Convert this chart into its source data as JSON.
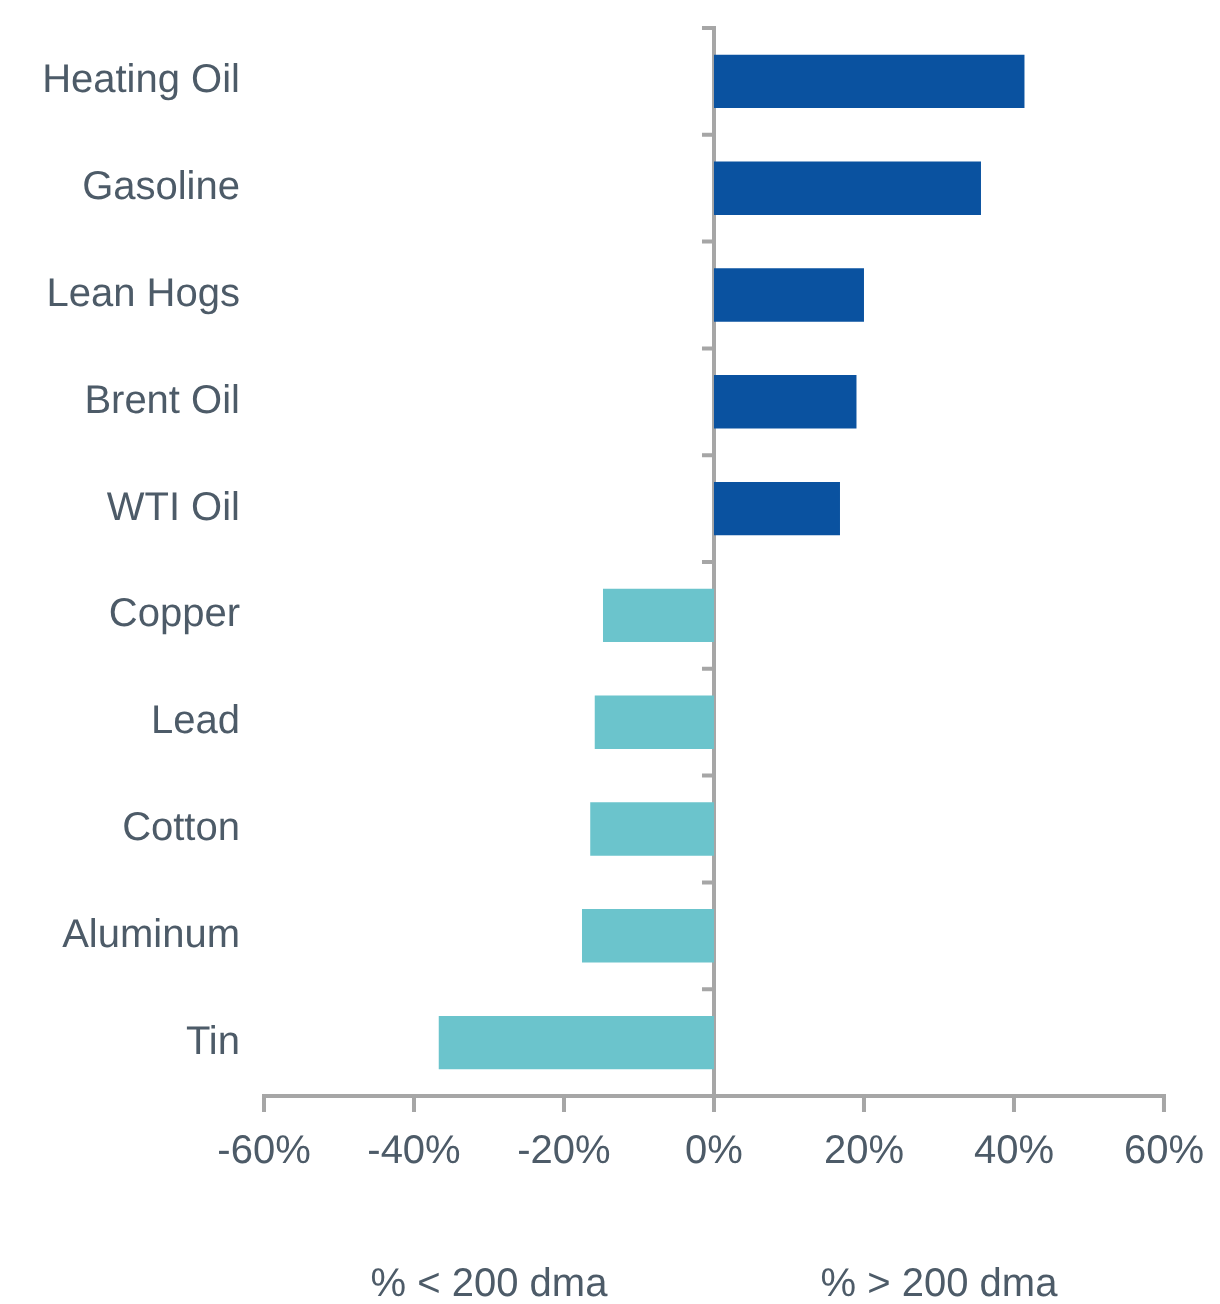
{
  "chart_data": {
    "type": "bar",
    "orientation": "horizontal",
    "categories": [
      "Heating Oil",
      "Gasoline",
      "Lean Hogs",
      "Brent Oil",
      "WTI Oil",
      "Copper",
      "Lead",
      "Cotton",
      "Aluminum",
      "Tin"
    ],
    "values": [
      41.4,
      35.6,
      20.0,
      19.0,
      16.8,
      -14.8,
      -15.9,
      -16.5,
      -17.6,
      -36.7
    ],
    "colors": [
      "#0a52a0",
      "#0a52a0",
      "#0a52a0",
      "#0a52a0",
      "#0a52a0",
      "#6bc4cc",
      "#6bc4cc",
      "#6bc4cc",
      "#6bc4cc",
      "#6bc4cc"
    ],
    "xlim": [
      -60,
      60
    ],
    "xticks": [
      {
        "value": -60,
        "label": "-60%"
      },
      {
        "value": -40,
        "label": "-40%"
      },
      {
        "value": -20,
        "label": "-20%"
      },
      {
        "value": 0,
        "label": "0%"
      },
      {
        "value": 20,
        "label": "20%"
      },
      {
        "value": 40,
        "label": "40%"
      },
      {
        "value": 60,
        "label": "60%"
      }
    ],
    "annotations": [
      "% < 200 dma",
      "% > 200 dma"
    ],
    "legend": false
  }
}
